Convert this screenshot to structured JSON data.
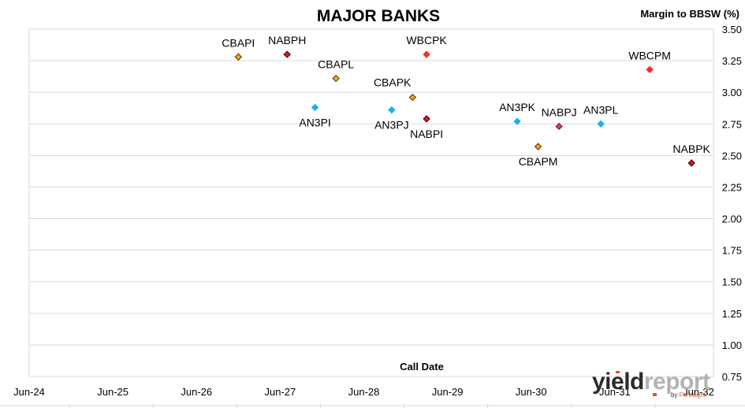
{
  "chart_data": {
    "type": "scatter",
    "title": "MAJOR BANKS",
    "ylabel": "Margin to BBSW (%)",
    "xlabel": "Call Date",
    "ylim": [
      0.75,
      3.5
    ],
    "yticks": [
      "0.75",
      "1.00",
      "1.25",
      "1.50",
      "1.75",
      "2.00",
      "2.25",
      "2.50",
      "2.75",
      "3.00",
      "3.25",
      "3.50"
    ],
    "xticks": [
      "Jun-24",
      "Jun-25",
      "Jun-26",
      "Jun-27",
      "Jun-28",
      "Jun-29",
      "Jun-30",
      "Jun-31",
      "Jun-32"
    ],
    "xlim": [
      "2024-06",
      "2032-06"
    ],
    "grid": "horizontal",
    "label_position_note": "",
    "points": [
      {
        "label": "CBAPI",
        "date": "2026-12",
        "value": 3.28,
        "color": "#F4A81C",
        "edge": "#4d3000",
        "labelpos": "above"
      },
      {
        "label": "NABPH",
        "date": "2027-07",
        "value": 3.3,
        "color": "#E0141E",
        "edge": "#3a0000",
        "labelpos": "above"
      },
      {
        "label": "CBAPL",
        "date": "2028-02",
        "value": 3.11,
        "color": "#F4A81C",
        "edge": "#4d3000",
        "labelpos": "above"
      },
      {
        "label": "WBCPK",
        "date": "2029-03",
        "value": 3.3,
        "color": "#FF2A1A",
        "edge": "#FF2A1A",
        "labelpos": "above"
      },
      {
        "label": "AN3PI",
        "date": "2027-11",
        "value": 2.88,
        "color": "#17B2E8",
        "edge": "#17B2E8",
        "labelpos": "below"
      },
      {
        "label": "CBAPK",
        "date": "2029-01",
        "value": 2.96,
        "color": "#F4A81C",
        "edge": "#4d3000",
        "labelpos": "above-left"
      },
      {
        "label": "AN3PJ",
        "date": "2028-10",
        "value": 2.86,
        "color": "#17B2E8",
        "edge": "#17B2E8",
        "labelpos": "below"
      },
      {
        "label": "NABPI",
        "date": "2029-03",
        "value": 2.79,
        "color": "#E0141E",
        "edge": "#3a0000",
        "labelpos": "below"
      },
      {
        "label": "AN3PK",
        "date": "2030-04",
        "value": 2.77,
        "color": "#17B2E8",
        "edge": "#17B2E8",
        "labelpos": "above"
      },
      {
        "label": "NABPJ",
        "date": "2030-10",
        "value": 2.73,
        "color": "#E0345A",
        "edge": "#7a1a30",
        "labelpos": "above"
      },
      {
        "label": "CBAPM",
        "date": "2030-07",
        "value": 2.57,
        "color": "#F4A81C",
        "edge": "#4d3000",
        "labelpos": "below"
      },
      {
        "label": "AN3PL",
        "date": "2031-04",
        "value": 2.75,
        "color": "#17B2E8",
        "edge": "#17B2E8",
        "labelpos": "above"
      },
      {
        "label": "WBCPM",
        "date": "2031-11",
        "value": 3.18,
        "color": "#FF2A1A",
        "edge": "#FF2A1A",
        "labelpos": "above"
      },
      {
        "label": "NABPK",
        "date": "2032-05",
        "value": 2.44,
        "color": "#E0141E",
        "edge": "#3a0000",
        "labelpos": "above"
      }
    ]
  },
  "logo": {
    "main_dark": "yield",
    "main_light": "report",
    "sub_prefix": "by ",
    "sub_brand": "Foresight",
    "dark_color": "#2b2b2b",
    "light_color": "#b3b3b3",
    "accent_color": "#E8541E"
  }
}
